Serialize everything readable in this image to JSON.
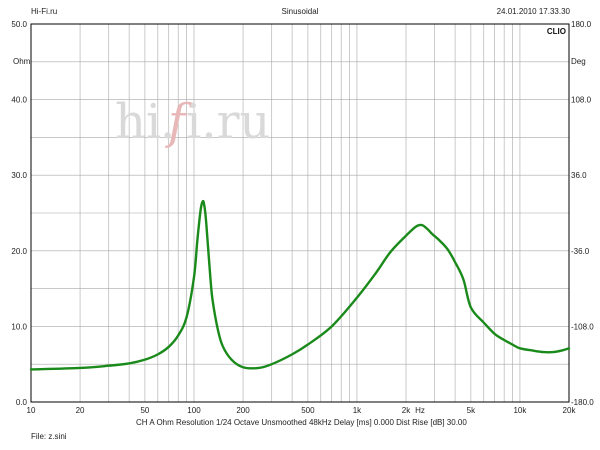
{
  "header": {
    "left": "Hi-Fi.ru",
    "center": "Sinusoidal",
    "right": "24.01.2010 17.33.30"
  },
  "brand": "CLIO",
  "watermark": {
    "a": "hi",
    "b": ".",
    "c": "f",
    "d": "i.ru"
  },
  "footer": {
    "measure_info": "CH A   Ohm   Resolution 1/24 Octave   Unsmoothed   48kHz   Delay [ms] 0.000   Dist Rise [dB] 30.00",
    "file": "File: z.sini"
  },
  "chart_data": {
    "type": "line",
    "title": "Sinusoidal",
    "xlabel": "Hz",
    "ylabel": "Ohm",
    "y2label": "Deg",
    "x_scale": "log",
    "xlim": [
      10,
      20000
    ],
    "ylim": [
      0,
      50
    ],
    "y2lim": [
      -180,
      180
    ],
    "grid": true,
    "x_ticks": [
      {
        "value": 10,
        "label": "10"
      },
      {
        "value": 20,
        "label": "20"
      },
      {
        "value": 50,
        "label": "50"
      },
      {
        "value": 100,
        "label": "100"
      },
      {
        "value": 200,
        "label": "200"
      },
      {
        "value": 500,
        "label": "500"
      },
      {
        "value": 1000,
        "label": "1k"
      },
      {
        "value": 2000,
        "label": "2k"
      },
      {
        "value": 5000,
        "label": "5k"
      },
      {
        "value": 10000,
        "label": "10k"
      },
      {
        "value": 20000,
        "label": "20k"
      }
    ],
    "y_ticks": [
      {
        "value": 0,
        "label": "0.0"
      },
      {
        "value": 10,
        "label": "10.0"
      },
      {
        "value": 20,
        "label": "20.0"
      },
      {
        "value": 30,
        "label": "30.0"
      },
      {
        "value": 40,
        "label": "40.0"
      },
      {
        "value": 50,
        "label": "50.0"
      }
    ],
    "y2_ticks": [
      {
        "value": -180,
        "label": "-180.0"
      },
      {
        "value": -108,
        "label": "-108.0"
      },
      {
        "value": -36,
        "label": "-36.0"
      },
      {
        "value": 36,
        "label": "36.0"
      },
      {
        "value": 108,
        "label": "108.0"
      },
      {
        "value": 180,
        "label": "180.0"
      }
    ],
    "series": [
      {
        "color": "#1a8a1a",
        "x": [
          10,
          20,
          30,
          40,
          50,
          60,
          70,
          80,
          90,
          100,
          105,
          110,
          113,
          115,
          118,
          122,
          126,
          130,
          140,
          150,
          170,
          200,
          250,
          300,
          400,
          500,
          700,
          1000,
          1300,
          1600,
          2000,
          2300,
          2500,
          2700,
          2900,
          3200,
          3600,
          4000,
          4500,
          5000,
          6000,
          7000,
          8000,
          9000,
          10000,
          12000,
          14000,
          16000,
          18000,
          20000
        ],
        "y": [
          4.3,
          4.5,
          4.8,
          5.1,
          5.6,
          6.3,
          7.3,
          8.8,
          11.2,
          16.5,
          21.5,
          25.5,
          26.5,
          26.3,
          24.5,
          20.5,
          16.5,
          13.5,
          9.6,
          7.4,
          5.6,
          4.6,
          4.5,
          5.0,
          6.3,
          7.6,
          10.0,
          13.8,
          17.0,
          19.8,
          22.0,
          23.2,
          23.4,
          22.9,
          22.2,
          21.4,
          20.2,
          18.5,
          16.2,
          12.5,
          10.5,
          9.0,
          8.2,
          7.6,
          7.1,
          6.8,
          6.6,
          6.6,
          6.8,
          7.1
        ]
      }
    ]
  }
}
